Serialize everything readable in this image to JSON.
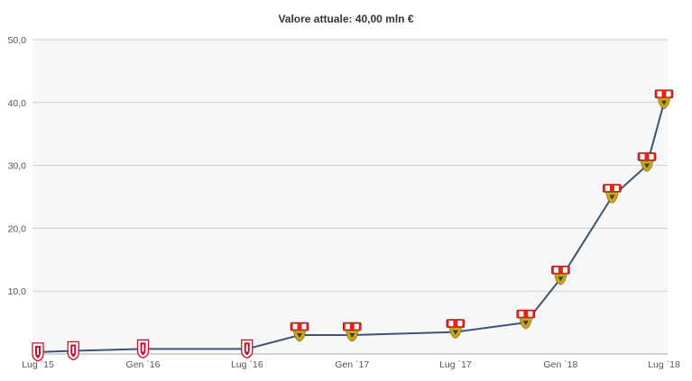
{
  "title": "Valore attuale: 40,00 mln €",
  "chart_data": {
    "type": "line",
    "title": "Valore attuale: 40,00 mln €",
    "xlabel": "",
    "ylabel": "",
    "ylim": [
      0,
      50
    ],
    "yticks": [
      {
        "value": 10,
        "label": "10,0"
      },
      {
        "value": 20,
        "label": "20,0"
      },
      {
        "value": 30,
        "label": "30,0"
      },
      {
        "value": 40,
        "label": "40,0"
      },
      {
        "value": 50,
        "label": "50,0"
      }
    ],
    "xlim": [
      "2015-07-01",
      "2018-07-01"
    ],
    "xticks": [
      {
        "date": "2015-07-01",
        "label": "Lug `15"
      },
      {
        "date": "2016-01-01",
        "label": "Gen `16"
      },
      {
        "date": "2016-07-01",
        "label": "Lug `16"
      },
      {
        "date": "2017-01-01",
        "label": "Gen `17"
      },
      {
        "date": "2017-07-01",
        "label": "Lug `17"
      },
      {
        "date": "2018-01-01",
        "label": "Gen `18"
      },
      {
        "date": "2018-07-01",
        "label": "Lug `18"
      }
    ],
    "grid": true,
    "series": [
      {
        "color": "#3f5375",
        "points": [
          {
            "date": "2015-07-01",
            "value": 0.3,
            "club": "lille"
          },
          {
            "date": "2015-09-01",
            "value": 0.5,
            "club": "lille"
          },
          {
            "date": "2016-01-01",
            "value": 0.8,
            "club": "lille"
          },
          {
            "date": "2016-07-01",
            "value": 0.8,
            "club": "lille"
          },
          {
            "date": "2016-10-01",
            "value": 3.0,
            "club": "stuttgart"
          },
          {
            "date": "2017-01-01",
            "value": 3.0,
            "club": "stuttgart"
          },
          {
            "date": "2017-07-01",
            "value": 3.5,
            "club": "stuttgart"
          },
          {
            "date": "2017-11-01",
            "value": 5.0,
            "club": "stuttgart"
          },
          {
            "date": "2018-01-01",
            "value": 12.0,
            "club": "stuttgart"
          },
          {
            "date": "2018-04-01",
            "value": 25.0,
            "club": "stuttgart"
          },
          {
            "date": "2018-06-01",
            "value": 30.0,
            "club": "stuttgart"
          },
          {
            "date": "2018-07-01",
            "value": 40.0,
            "club": "stuttgart"
          }
        ]
      }
    ],
    "colors": {
      "plot_background": "#f7f7f7",
      "grid": "#cccccc",
      "line": "#3f5375",
      "lille_badge": "#c8102e",
      "stuttgart_badge_top": "#e32219",
      "stuttgart_badge_bottom": "#c9a51b"
    },
    "marker_icons": {
      "lille": "lille-crest-icon",
      "stuttgart": "vfb-stuttgart-crest-icon"
    }
  }
}
